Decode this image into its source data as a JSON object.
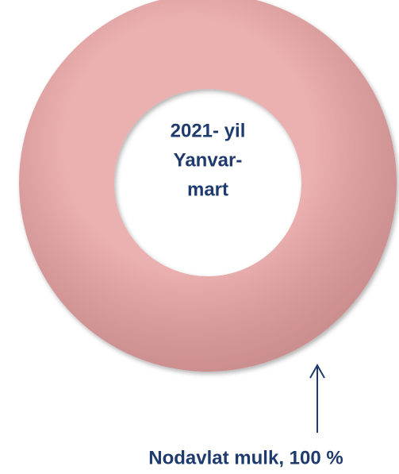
{
  "chart_data": {
    "type": "donut",
    "center_text": [
      "2021- yil",
      "Yanvar-",
      "mart"
    ],
    "values": [
      100
    ],
    "value_labels": [
      "Nodavlat mulk, 100 %"
    ],
    "colors": [
      "#e8a2a2"
    ]
  }
}
